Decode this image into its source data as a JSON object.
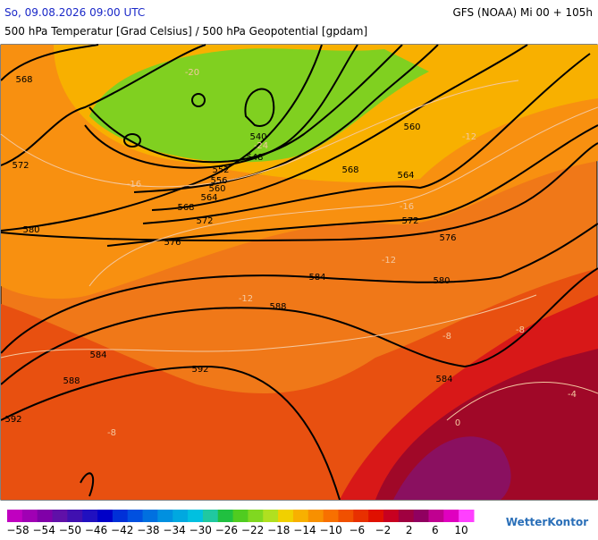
{
  "header": {
    "date": "So, 09.08.2026 09:00 UTC",
    "model": "GFS (NOAA) Mi 00 + 105h",
    "title": "500 hPa Temperatur [Grad Celsius] / 500 hPa Geopotential [gpdam]"
  },
  "contour_labels": [
    "568",
    "572",
    "580",
    "584",
    "588",
    "592",
    "540",
    "548",
    "552",
    "556",
    "560",
    "564",
    "568",
    "572",
    "576",
    "584",
    "588",
    "592",
    "568",
    "564",
    "560",
    "572",
    "576",
    "580",
    "584"
  ],
  "isotherm_labels": [
    "-24",
    "-20",
    "-16",
    "-16",
    "-12",
    "-12",
    "-12",
    "-8",
    "-8",
    "-8",
    "-4",
    "0"
  ],
  "colorbar": {
    "labels": [
      "−58",
      "−54",
      "−50",
      "−46",
      "−42",
      "−38",
      "−34",
      "−30",
      "−26",
      "−22",
      "−18",
      "−14",
      "−10",
      "−6",
      "−2",
      "2",
      "6",
      "10"
    ],
    "colors": [
      "#c000c0",
      "#a000b4",
      "#8000a8",
      "#6010a8",
      "#4010b0",
      "#2010c0",
      "#0000c8",
      "#0030d8",
      "#0050e0",
      "#0070e0",
      "#0090e0",
      "#00a8e0",
      "#00c0e0",
      "#20c8a0",
      "#20c040",
      "#50cc20",
      "#80d820",
      "#b0e020",
      "#f0d000",
      "#f8b000",
      "#f89000",
      "#f87000",
      "#f05000",
      "#e83000",
      "#e01000",
      "#c80020",
      "#a00040",
      "#900060",
      "#c00090",
      "#e000c0",
      "#ff40ff"
    ]
  },
  "logo": "WetterKontor"
}
